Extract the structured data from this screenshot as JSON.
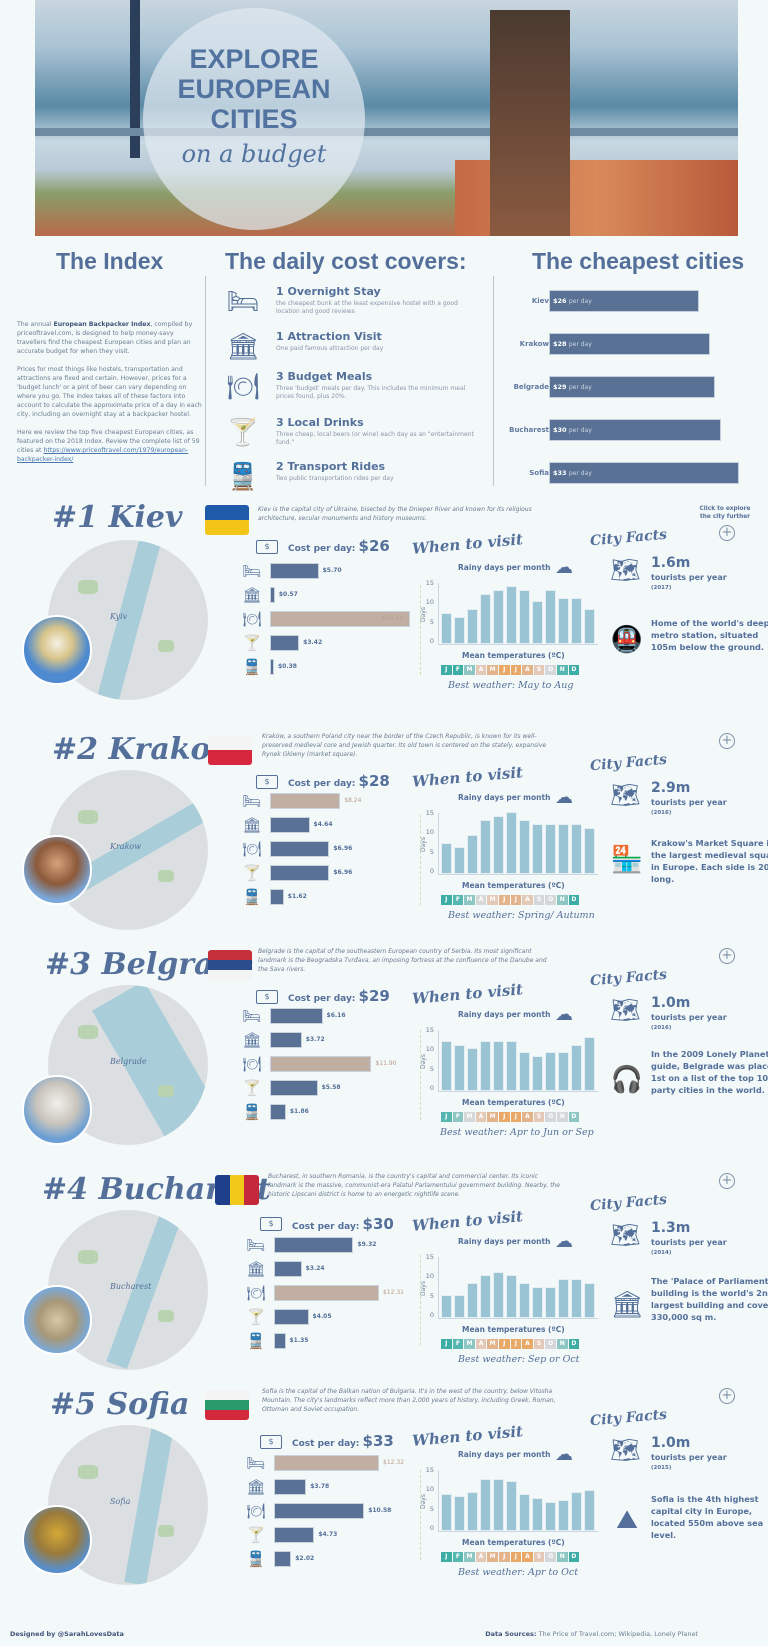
{
  "hero": {
    "title_lines": [
      "EXPLORE",
      "EUROPEAN",
      "CITIES"
    ],
    "subtitle": "on a budget"
  },
  "index": {
    "heading": "The Index",
    "para1_pre": "The annual ",
    "para1_bold": "European Backpacker Index",
    "para1_post": ", compiled by priceoftravel.com, is designed to help money-savy travellers find the cheapest European cities and plan an accurate budget for when they visit.",
    "para2": "Prices for most things like hostels, transportation and attractions are fixed and certain. However, prices for a 'budget lunch' or a pint of beer can vary depending on where you go. The index takes all of these factors into account to calculate the approximate price of a day in each city, including an overnight stay at a backpacker hostel.",
    "para3": "Here we review the top five cheapest European cities, as featured on the 2018 Index. Review the complete list of 59 cities at ",
    "link": "https://www.priceoftravel.com/1979/european-backpacker-index/"
  },
  "covers": {
    "heading": "The daily cost covers:",
    "items": [
      {
        "icon": "bed-icon",
        "glyph": "🛏",
        "title": "1 Overnight Stay",
        "desc": "the cheapest  bunk at the least expensive hostel with a good location and good reviews"
      },
      {
        "icon": "museum-icon",
        "glyph": "🏛",
        "title": "1 Attraction Visit",
        "desc": "One paid famous attraction per day"
      },
      {
        "icon": "meal-icon",
        "glyph": "🍽",
        "title": "3 Budget Meals",
        "desc": "Three 'budget' meals per day. This includes the minimum meal prices found, plus 20%."
      },
      {
        "icon": "drinks-icon",
        "glyph": "🍸",
        "title": "3 Local Drinks",
        "desc": "Three cheap, local beers (or wine) each day as an \"entertainment fund.\""
      },
      {
        "icon": "train-icon",
        "glyph": "🚆",
        "title": "2 Transport Rides",
        "desc": "Two public transportation rides per day"
      }
    ]
  },
  "cheapest": {
    "heading": "The cheapest cities",
    "per_day": "per day",
    "rows": [
      {
        "city": "Kiev",
        "value": "$26"
      },
      {
        "city": "Krakow",
        "value": "$28"
      },
      {
        "city": "Belgrade",
        "value": "$29"
      },
      {
        "city": "Bucharest",
        "value": "$30"
      },
      {
        "city": "Sofia",
        "value": "$33"
      }
    ]
  },
  "common": {
    "cost_label": "Cost per day:",
    "when_to_visit": "When to visit",
    "rainy_title": "Rainy days per month",
    "days_label": "Days",
    "y_ticks": [
      "15",
      "10",
      "5",
      "0"
    ],
    "mean_temp": "Mean temperatures (ºC)",
    "city_facts": "City Facts",
    "tourists_label": "tourists per year",
    "explore_hint": "Click to explore the city further",
    "months": [
      "J",
      "F",
      "M",
      "A",
      "M",
      "J",
      "J",
      "A",
      "S",
      "O",
      "N",
      "D"
    ]
  },
  "cities": [
    {
      "rank": "#1 Kiev",
      "map_label": "Kyiv",
      "desc": "Kiev is the capital city of Ukraine, bisected by the Dnieper River and known for its religious architecture, secular monuments and history museums.",
      "cost": "$26",
      "costs": [
        "$5.70",
        "$0.57",
        "$16.42",
        "$3.42",
        "$0.38"
      ],
      "best": "Best weather: May to Aug",
      "tourists": "1.6m",
      "tourists_year": "(2017)",
      "fact": "Home of the world's deepest metro station, situated 105m below the ground."
    },
    {
      "rank": "#2 Krakow",
      "map_label": "Krakow",
      "desc": "Kraków, a southern Poland city near the border of the Czech Republic, is known for its well-preserved medieval core and Jewish quarter. Its old town  is centered on the stately, expansive Rynek Główny (market square).",
      "cost": "$28",
      "costs": [
        "$8.24",
        "$4.64",
        "$6.96",
        "$6.96",
        "$1.62"
      ],
      "best": "Best weather: Spring/ Autumn",
      "tourists": "2.9m",
      "tourists_year": "(2016)",
      "fact": "Krakow's Market Square is the largest medieval square in Europe. Each side is 200m long."
    },
    {
      "rank": "#3 Belgrade",
      "map_label": "Belgrade",
      "desc": "Belgrade is the capital of the southeastern European country of Serbia. Its most significant landmark is the Beogradska Tvrđava, an imposing fortress at the confluence of the Danube and the Sava rivers.",
      "cost": "$29",
      "costs": [
        "$6.16",
        "$3.72",
        "$11.90",
        "$5.58",
        "$1.86"
      ],
      "best": "Best weather: Apr to  Jun or Sep",
      "tourists": "1.0m",
      "tourists_year": "(2016)",
      "fact": "In the 2009 Lonely Planet guide, Belgrade was placed 1st on a list of the top 10 party cities in the world."
    },
    {
      "rank": "#4 Bucharest",
      "map_label": "Bucharest",
      "desc": "Bucharest, in southern Romania, is the country's capital and commercial center. Its iconic landmark is the massive, communist-era Palatul Parlamentului government building. Nearby, the historic Lipscani district is home to an energetic nightlife scene.",
      "cost": "$30",
      "costs": [
        "$9.32",
        "$3.24",
        "$12.31",
        "$4.05",
        "$1.35"
      ],
      "best": "Best weather: Sep or Oct",
      "tourists": "1.3m",
      "tourists_year": "(2014)",
      "fact": "The 'Palace of Parliament' building is the world's 2nd largest building and covers 330,000 sq m."
    },
    {
      "rank": "#5 Sofia",
      "map_label": "Sofia",
      "desc": "Sofia is the capital of the Balkan nation of Bulgaria. It's in the west of the country, below Vitosha Mountain. The city's landmarks reflect more than 2,000 years of history, including Greek, Roman, Ottoman and Soviet occupation.",
      "cost": "$33",
      "costs": [
        "$12.32",
        "$3.78",
        "$10.58",
        "$4.73",
        "$2.02"
      ],
      "best": "Best weather: Apr to Oct",
      "tourists": "1.0m",
      "tourists_year": "(2015)",
      "fact": "Sofia is the 4th highest capital city in Europe, located 550m above sea level."
    }
  ],
  "footer": {
    "designed_by": "Designed by @SarahLovesData",
    "sources_label": "Data Sources:",
    "sources": " The Price of Travel.com; Wikipedia, Lonely Planet"
  },
  "colors": {
    "primary": "#54709a",
    "bar": "#587195",
    "highlight_bar": "#c2afa3",
    "rain_bar": "#9ac4d3",
    "background": "#f3f8f9"
  },
  "chart_data": [
    {
      "type": "bar",
      "title": "The cheapest cities",
      "categories": [
        "Kiev",
        "Krakow",
        "Belgrade",
        "Bucharest",
        "Sofia"
      ],
      "values": [
        26,
        28,
        29,
        30,
        33
      ],
      "xlabel": "",
      "ylabel": "Cost per day ($)"
    },
    {
      "type": "bar",
      "title": "Kiev - Cost per day: $26",
      "categories": [
        "Overnight Stay",
        "Attraction Visit",
        "Budget Meals",
        "Local Drinks",
        "Transport Rides"
      ],
      "values": [
        5.7,
        0.57,
        16.42,
        3.42,
        0.38
      ]
    },
    {
      "type": "bar",
      "title": "Kiev - Rainy days per month",
      "ylabel": "Days",
      "ylim": [
        0,
        16
      ],
      "categories": [
        "J",
        "F",
        "M",
        "A",
        "M",
        "J",
        "J",
        "A",
        "S",
        "O",
        "N",
        "D"
      ],
      "values": [
        8,
        7,
        9,
        13,
        14,
        15,
        14,
        11,
        14,
        12,
        12,
        9
      ],
      "temp_colors": [
        "#3eada5",
        "#3eada5",
        "#8ec6c4",
        "#e4c8b8",
        "#e3b48c",
        "#e8a868",
        "#e8a868",
        "#e3b48c",
        "#e4c8b8",
        "#d5d7d8",
        "#56b6b0",
        "#3eada5"
      ]
    },
    {
      "type": "bar",
      "title": "Krakow - Cost per day: $28",
      "categories": [
        "Overnight Stay",
        "Attraction Visit",
        "Budget Meals",
        "Local Drinks",
        "Transport Rides"
      ],
      "values": [
        8.24,
        4.64,
        6.96,
        6.96,
        1.62
      ]
    },
    {
      "type": "bar",
      "title": "Krakow - Rainy days per month",
      "ylabel": "Days",
      "ylim": [
        0,
        16
      ],
      "categories": [
        "J",
        "F",
        "M",
        "A",
        "M",
        "J",
        "J",
        "A",
        "S",
        "O",
        "N",
        "D"
      ],
      "values": [
        8,
        7,
        10,
        14,
        15,
        16,
        14,
        13,
        13,
        13,
        13,
        12
      ],
      "temp_colors": [
        "#3eada5",
        "#56b6b0",
        "#8ec6c4",
        "#d5d7d8",
        "#e4c8b8",
        "#e3b48c",
        "#e3b48c",
        "#e4c8b8",
        "#d5d7d8",
        "#d5d7d8",
        "#8ec6c4",
        "#3eada5"
      ]
    },
    {
      "type": "bar",
      "title": "Belgrade - Cost per day: $29",
      "categories": [
        "Overnight Stay",
        "Attraction Visit",
        "Budget Meals",
        "Local Drinks",
        "Transport Rides"
      ],
      "values": [
        6.16,
        3.72,
        11.9,
        5.58,
        1.86
      ]
    },
    {
      "type": "bar",
      "title": "Belgrade - Rainy days per month",
      "ylabel": "Days",
      "ylim": [
        0,
        16
      ],
      "categories": [
        "J",
        "F",
        "M",
        "A",
        "M",
        "J",
        "J",
        "A",
        "S",
        "O",
        "N",
        "D"
      ],
      "values": [
        13,
        12,
        11,
        13,
        13,
        13,
        10,
        9,
        10,
        10,
        12,
        14
      ],
      "temp_colors": [
        "#56b6b0",
        "#8ec6c4",
        "#d5d7d8",
        "#e4c8b8",
        "#e3b48c",
        "#e8a868",
        "#e8a868",
        "#e3b48c",
        "#e4c8b8",
        "#d5d7d8",
        "#d5d7d8",
        "#8ec6c4"
      ]
    },
    {
      "type": "bar",
      "title": "Bucharest - Cost per day: $30",
      "categories": [
        "Overnight Stay",
        "Attraction Visit",
        "Budget Meals",
        "Local Drinks",
        "Transport Rides"
      ],
      "values": [
        9.32,
        3.24,
        12.31,
        4.05,
        1.35
      ]
    },
    {
      "type": "bar",
      "title": "Bucharest - Rainy days per month",
      "ylabel": "Days",
      "ylim": [
        0,
        16
      ],
      "categories": [
        "J",
        "F",
        "M",
        "A",
        "M",
        "J",
        "J",
        "A",
        "S",
        "O",
        "N",
        "D"
      ],
      "values": [
        6,
        6,
        9,
        11,
        12,
        11,
        9,
        8,
        8,
        10,
        10,
        9
      ],
      "temp_colors": [
        "#3eada5",
        "#56b6b0",
        "#8ec6c4",
        "#e4c8b8",
        "#e3b48c",
        "#e8a868",
        "#e8a868",
        "#e8a868",
        "#e4c8b8",
        "#d5d7d8",
        "#8ec6c4",
        "#3eada5"
      ]
    },
    {
      "type": "bar",
      "title": "Sofia - Cost per day: $33",
      "categories": [
        "Overnight Stay",
        "Attraction Visit",
        "Budget Meals",
        "Local Drinks",
        "Transport Rides"
      ],
      "values": [
        12.32,
        3.78,
        10.58,
        4.73,
        2.02
      ]
    },
    {
      "type": "bar",
      "title": "Sofia - Rainy days per month",
      "ylabel": "Days",
      "ylim": [
        0,
        16
      ],
      "categories": [
        "J",
        "F",
        "M",
        "A",
        "M",
        "J",
        "J",
        "A",
        "S",
        "O",
        "N",
        "D"
      ],
      "values": [
        9.5,
        9,
        10,
        13.5,
        13.5,
        13,
        9.5,
        8.5,
        7.5,
        8,
        10,
        10.5
      ],
      "temp_colors": [
        "#3eada5",
        "#56b6b0",
        "#8ec6c4",
        "#e4c8b8",
        "#e3b48c",
        "#e3b48c",
        "#e8a868",
        "#e8a868",
        "#e4c8b8",
        "#d5d7d8",
        "#8ec6c4",
        "#3eada5"
      ]
    }
  ]
}
